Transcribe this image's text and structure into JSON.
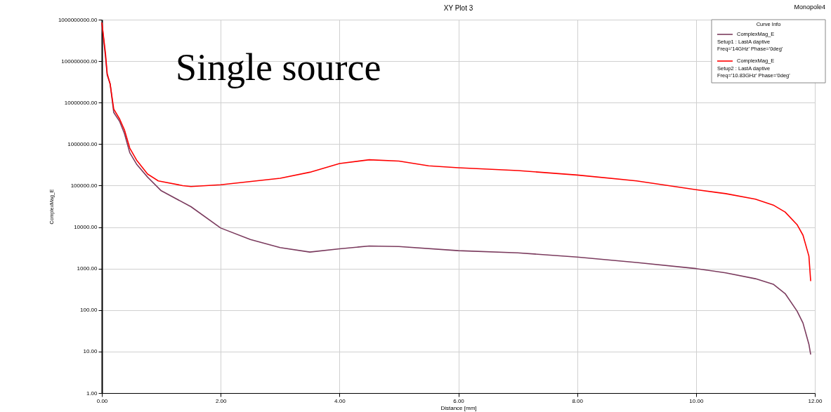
{
  "chart_data": {
    "type": "line",
    "title": "XY Plot 3",
    "xlabel": "Distance [mm]",
    "ylabel": "ComplexMag_E",
    "legend_title": "Curve Info",
    "annotations": [
      "Single source",
      "Monopole4"
    ],
    "log": "y",
    "grid": true,
    "legend": "top right",
    "line_style": "solid",
    "marker": "none",
    "xlim": [
      0,
      12
    ],
    "ylim": [
      1,
      1000000000
    ],
    "xticks": [
      {
        "value": 0,
        "label": "0.00"
      },
      {
        "value": 2,
        "label": "2.00"
      },
      {
        "value": 4,
        "label": "4.00"
      },
      {
        "value": 6,
        "label": "6.00"
      },
      {
        "value": 8,
        "label": "8.00"
      },
      {
        "value": 10,
        "label": "10.00"
      },
      {
        "value": 12,
        "label": "12.00"
      }
    ],
    "yticks": [
      {
        "value": 1,
        "label": "1.00"
      },
      {
        "value": 10,
        "label": "10.00"
      },
      {
        "value": 100,
        "label": "100.00"
      },
      {
        "value": 1000,
        "label": "1000.00"
      },
      {
        "value": 10000,
        "label": "10000.00"
      },
      {
        "value": 100000,
        "label": "100000.00"
      },
      {
        "value": 1000000,
        "label": "1000000.00"
      },
      {
        "value": 10000000,
        "label": "10000000.00"
      },
      {
        "value": 100000000,
        "label": "100000000.00"
      },
      {
        "value": 1000000000,
        "label": "1000000000.00"
      }
    ],
    "series": [
      {
        "name": "ComplexMag_E\nSetup1 : LastA daptive\nFreq='14GHz' Phase='0deg'",
        "color": "#7b3b5e",
        "x": [
          0,
          0.06,
          0.09,
          0.14,
          0.2,
          0.3,
          0.38,
          0.47,
          0.59,
          0.77,
          1.0,
          1.5,
          2.0,
          2.5,
          3.0,
          3.5,
          4.0,
          4.5,
          5.0,
          6.0,
          7.0,
          8.0,
          9.0,
          10.0,
          10.5,
          11.0,
          11.3,
          11.5,
          11.7,
          11.8,
          11.9,
          11.93
        ],
        "values": [
          850000000,
          130000000,
          46000000,
          28000000,
          5800000,
          3500000,
          1800000,
          620000,
          320000,
          160000,
          75000,
          31000,
          9500,
          5000,
          3200,
          2500,
          3000,
          3500,
          3400,
          2700,
          2400,
          1900,
          1400,
          1000,
          790,
          570,
          420,
          250,
          95,
          49,
          15,
          8.5
        ]
      },
      {
        "name": "ComplexMag_E\nSetup2 : LastA daptive\nFreq='10.83GHz' Phase='0deg'",
        "color": "#ff0000",
        "x": [
          0,
          0.06,
          0.09,
          0.14,
          0.2,
          0.3,
          0.38,
          0.47,
          0.59,
          0.77,
          0.95,
          1.36,
          1.5,
          2.0,
          3.0,
          3.5,
          4.0,
          4.5,
          5.0,
          5.5,
          6.0,
          7.0,
          8.0,
          9.0,
          10.0,
          10.5,
          11.0,
          11.3,
          11.5,
          11.7,
          11.8,
          11.9,
          11.93
        ],
        "values": [
          850000000,
          160000000,
          50000000,
          28000000,
          7000000,
          4000000,
          2200000,
          800000,
          400000,
          190000,
          130000,
          100000,
          95000,
          105000,
          150000,
          210000,
          340000,
          420000,
          390000,
          300000,
          270000,
          230000,
          180000,
          130000,
          80000,
          64000,
          47000,
          34000,
          23000,
          11500,
          6400,
          2000,
          500
        ]
      }
    ]
  }
}
